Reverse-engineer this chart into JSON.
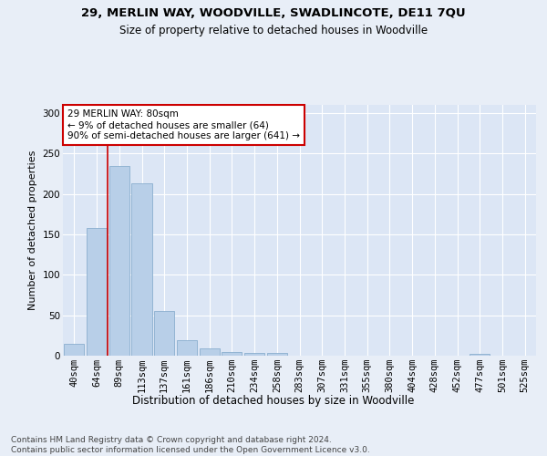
{
  "title1": "29, MERLIN WAY, WOODVILLE, SWADLINCOTE, DE11 7QU",
  "title2": "Size of property relative to detached houses in Woodville",
  "xlabel": "Distribution of detached houses by size in Woodville",
  "ylabel": "Number of detached properties",
  "categories": [
    "40sqm",
    "64sqm",
    "89sqm",
    "113sqm",
    "137sqm",
    "161sqm",
    "186sqm",
    "210sqm",
    "234sqm",
    "258sqm",
    "283sqm",
    "307sqm",
    "331sqm",
    "355sqm",
    "380sqm",
    "404sqm",
    "428sqm",
    "452sqm",
    "477sqm",
    "501sqm",
    "525sqm"
  ],
  "values": [
    15,
    158,
    234,
    213,
    55,
    19,
    9,
    5,
    3,
    3,
    0,
    0,
    0,
    0,
    0,
    0,
    0,
    0,
    2,
    0,
    0
  ],
  "bar_color": "#b8cfe8",
  "bar_edge_color": "#8aaece",
  "red_line_x": 1.5,
  "annotation_text": "29 MERLIN WAY: 80sqm\n← 9% of detached houses are smaller (64)\n90% of semi-detached houses are larger (641) →",
  "annotation_box_color": "#ffffff",
  "annotation_box_edge": "#cc0000",
  "red_line_color": "#cc0000",
  "ylim": [
    0,
    310
  ],
  "yticks": [
    0,
    50,
    100,
    150,
    200,
    250,
    300
  ],
  "footer": "Contains HM Land Registry data © Crown copyright and database right 2024.\nContains public sector information licensed under the Open Government Licence v3.0.",
  "bg_color": "#e8eef7",
  "plot_bg_color": "#dce6f5",
  "title1_fontsize": 9.5,
  "title2_fontsize": 8.5,
  "xlabel_fontsize": 8.5,
  "ylabel_fontsize": 8,
  "tick_fontsize": 7.5,
  "annot_fontsize": 7.5,
  "footer_fontsize": 6.5
}
